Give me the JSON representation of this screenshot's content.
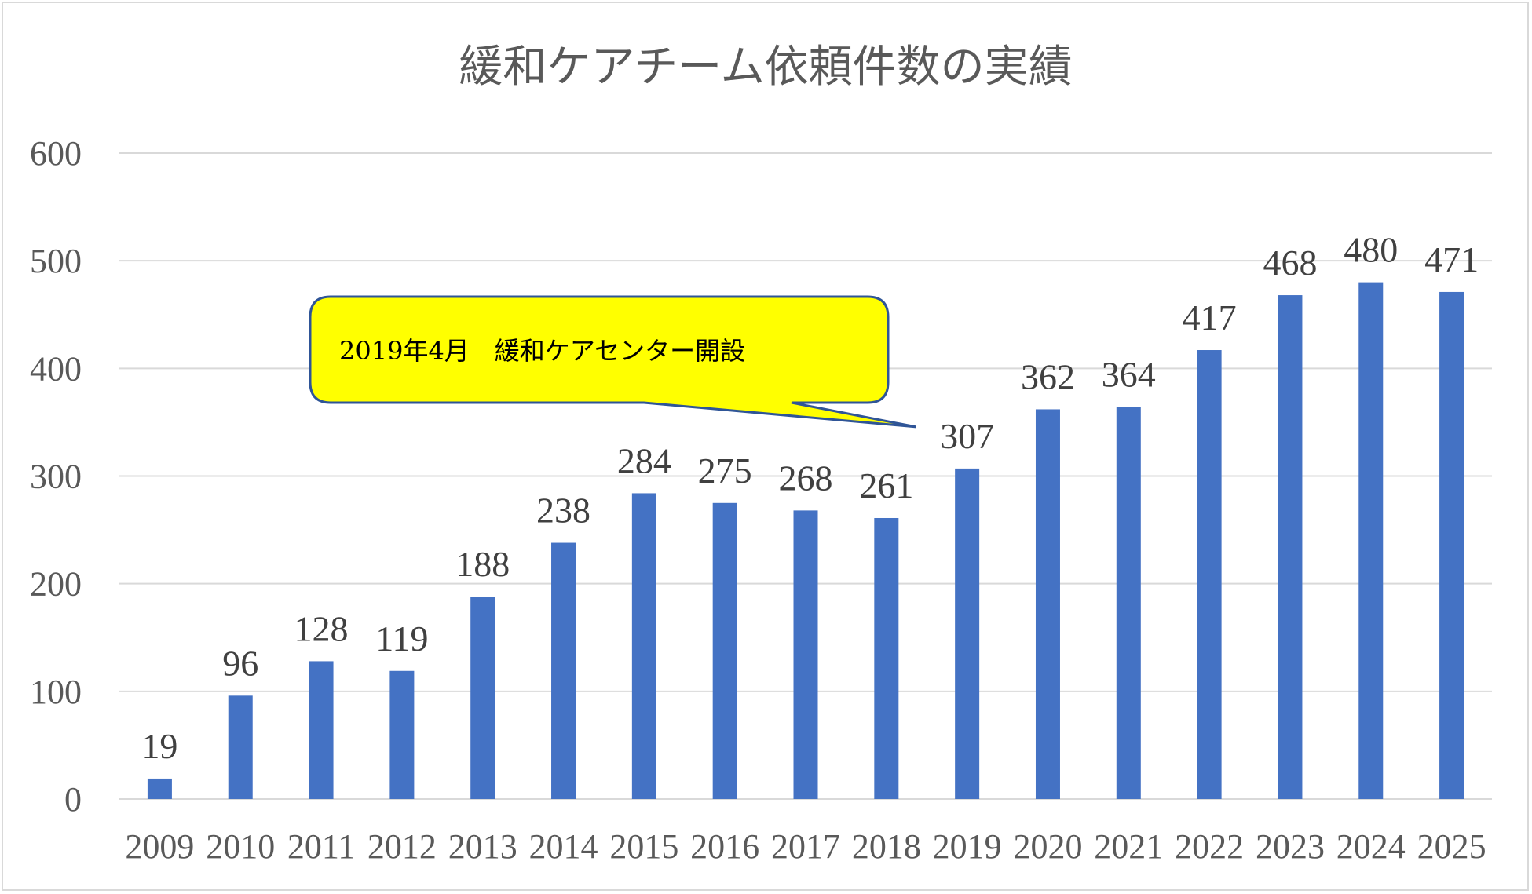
{
  "chart_data": {
    "type": "bar",
    "title": "緩和ケアチーム依頼件数の実績",
    "xlabel": "",
    "ylabel": "",
    "categories": [
      "2009",
      "2010",
      "2011",
      "2012",
      "2013",
      "2014",
      "2015",
      "2016",
      "2017",
      "2018",
      "2019",
      "2020",
      "2021",
      "2022",
      "2023",
      "2024",
      "2025"
    ],
    "values": [
      19,
      96,
      128,
      119,
      188,
      238,
      284,
      275,
      268,
      261,
      307,
      362,
      364,
      417,
      468,
      480,
      471
    ],
    "ylim": [
      0,
      600
    ],
    "yticks": [
      0,
      100,
      200,
      300,
      400,
      500,
      600
    ],
    "grid": true,
    "legend": "none",
    "data_labels": true,
    "colors": {
      "bar": "#4472C4",
      "grid": "#d9d9d9",
      "axis_text": "#595959",
      "callout_fill": "#FFFF00",
      "callout_border": "#2F5597"
    },
    "annotation": {
      "text": "2019年4月　緩和ケアセンター開設",
      "points_to": "2019"
    }
  }
}
